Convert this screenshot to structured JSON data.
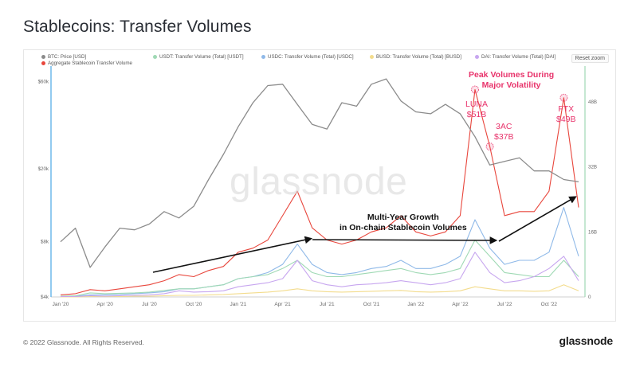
{
  "title": "Stablecoins: Transfer Volumes",
  "reset_zoom": "Reset zoom",
  "watermark": "glassnode",
  "footer": {
    "copyright": "© 2022 Glassnode. All Rights Reserved.",
    "logo": "glassnode"
  },
  "legend": [
    {
      "label": "BTC: Price [USD]",
      "color": "#8b8b8b"
    },
    {
      "label": "USDT: Transfer Volume (Total) [USDT]",
      "color": "#9fd9b4"
    },
    {
      "label": "USDC: Transfer Volume (Total) [USDC]",
      "color": "#8fb9e8"
    },
    {
      "label": "BUSD: Transfer Volume (Total) [BUSD]",
      "color": "#f3dc8d"
    },
    {
      "label": "DAI: Transfer Volume (Total) [DAI]",
      "color": "#c7a6ef"
    },
    {
      "label": "Aggregate Stablecoin Transfer Volume",
      "color": "#e8463c"
    }
  ],
  "annotations": {
    "peak": [
      "Peak Volumes During",
      "Major Volatility"
    ],
    "luna": [
      "LUNA",
      "$51B"
    ],
    "threeac": [
      "3AC",
      "$37B"
    ],
    "ftx": [
      "FTX",
      "$49B"
    ],
    "growth": [
      "Multi-Year Growth",
      "in On-chain Stablecoin Volumes"
    ]
  },
  "colors": {
    "accent": "#e8336b",
    "btc": "#8b8b8b",
    "aggregate": "#e8463c",
    "usdt": "#9fd9b4",
    "usdc": "#8fb9e8",
    "busd": "#f3dc8d",
    "dai": "#c7a6ef"
  },
  "chart_data": {
    "type": "line",
    "title": "Stablecoins: Transfer Volumes",
    "x_ticks": [
      "Jan '20",
      "Apr '20",
      "Jul '20",
      "Oct '20",
      "Jan '21",
      "Apr '21",
      "Jul '21",
      "Oct '21",
      "Jan '22",
      "Apr '22",
      "Jul '22",
      "Oct '22"
    ],
    "y_left_ticks": [
      "$4k",
      "$8k",
      "$20k",
      "$60k"
    ],
    "y_left_scale": "log",
    "y_right_ticks": [
      "0",
      "16B",
      "32B",
      "48B"
    ],
    "y_right_range": [
      0,
      56
    ],
    "x": [
      "2020-01",
      "2020-02",
      "2020-03",
      "2020-04",
      "2020-05",
      "2020-06",
      "2020-07",
      "2020-08",
      "2020-09",
      "2020-10",
      "2020-11",
      "2020-12",
      "2021-01",
      "2021-02",
      "2021-03",
      "2021-04",
      "2021-05",
      "2021-06",
      "2021-07",
      "2021-08",
      "2021-09",
      "2021-10",
      "2021-11",
      "2021-12",
      "2022-01",
      "2022-02",
      "2022-03",
      "2022-04",
      "2022-05",
      "2022-06",
      "2022-07",
      "2022-08",
      "2022-09",
      "2022-10",
      "2022-11",
      "2022-12"
    ],
    "series": [
      {
        "name": "BTC: Price [USD]",
        "axis": "left",
        "values": [
          8000,
          9500,
          5800,
          7500,
          9500,
          9300,
          10000,
          11700,
          10800,
          12500,
          17500,
          24000,
          34000,
          46000,
          57000,
          58000,
          45000,
          35000,
          33000,
          46000,
          44000,
          58000,
          62000,
          47000,
          41000,
          40000,
          45000,
          40000,
          30000,
          21000,
          22000,
          23000,
          19500,
          19500,
          17500,
          17000
        ]
      },
      {
        "name": "Aggregate Stablecoin Transfer Volume",
        "axis": "right",
        "values": [
          0.5,
          0.8,
          1.8,
          1.5,
          2,
          2.5,
          3,
          4,
          5.5,
          5,
          6.5,
          7.5,
          11,
          12,
          14,
          20,
          26,
          17,
          14,
          13,
          14,
          16,
          17,
          20,
          16,
          15,
          16,
          20,
          51,
          37,
          20,
          21,
          21,
          26,
          49,
          22
        ]
      },
      {
        "name": "USDT: Transfer Volume (Total) [USDT]",
        "axis": "right",
        "values": [
          0.2,
          0.3,
          1,
          0.8,
          0.9,
          1,
          1.2,
          1.6,
          2,
          2,
          2.5,
          3,
          4.5,
          5,
          5.5,
          7,
          9,
          6,
          5,
          5,
          5.5,
          6,
          6.5,
          7,
          6,
          5.5,
          6,
          7,
          14,
          10,
          6,
          5.5,
          5,
          5,
          9,
          5
        ]
      },
      {
        "name": "USDC: Transfer Volume (Total) [USDC]",
        "axis": "right",
        "values": [
          0.1,
          0.2,
          0.5,
          0.5,
          0.6,
          0.8,
          1,
          1.3,
          2,
          2,
          2.5,
          3,
          4.5,
          5,
          6,
          8,
          13,
          8,
          6,
          5.5,
          6,
          7,
          7.5,
          9,
          7,
          7,
          8,
          10,
          19,
          12,
          8,
          9,
          9,
          11,
          22,
          10
        ]
      },
      {
        "name": "BUSD: Transfer Volume (Total) [BUSD]",
        "axis": "right",
        "values": [
          0,
          0,
          0.1,
          0.1,
          0.1,
          0.2,
          0.2,
          0.3,
          0.4,
          0.4,
          0.5,
          0.6,
          0.8,
          1,
          1.2,
          1.5,
          2,
          1.5,
          1.3,
          1.2,
          1.3,
          1.4,
          1.5,
          1.6,
          1.3,
          1.2,
          1.3,
          1.5,
          2.5,
          2,
          1.5,
          1.5,
          1.4,
          1.5,
          3,
          1.5
        ]
      },
      {
        "name": "DAI: Transfer Volume (Total) [DAI]",
        "axis": "right",
        "values": [
          0.1,
          0.1,
          0.3,
          0.2,
          0.3,
          0.4,
          0.5,
          0.8,
          1.5,
          1.2,
          1.3,
          1.5,
          2.5,
          3,
          3.5,
          4.5,
          9,
          4,
          3,
          2.5,
          3,
          3.2,
          3.5,
          4,
          3.5,
          3,
          3.5,
          4.5,
          11,
          6,
          3.5,
          4,
          5,
          7,
          10,
          4
        ]
      }
    ]
  }
}
